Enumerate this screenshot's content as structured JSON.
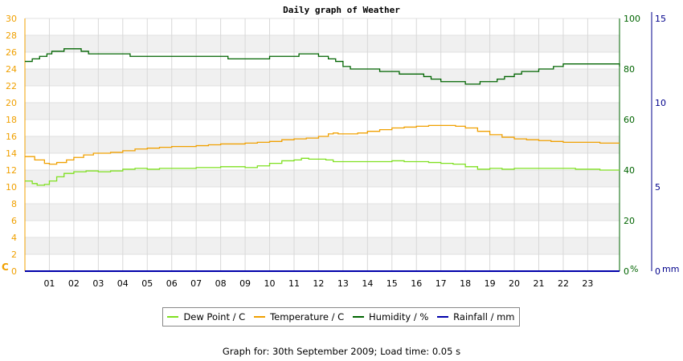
{
  "chart_data": {
    "type": "line",
    "title": "Daily graph of Weather",
    "x_tick_labels": [
      "01",
      "02",
      "03",
      "04",
      "05",
      "06",
      "07",
      "08",
      "09",
      "10",
      "11",
      "12",
      "13",
      "14",
      "15",
      "16",
      "17",
      "18",
      "19",
      "20",
      "21",
      "22",
      "23"
    ],
    "xlim": [
      0,
      24.3
    ],
    "y_axes": {
      "left": {
        "unit": "C",
        "ticks": [
          0,
          2,
          4,
          6,
          8,
          10,
          12,
          14,
          16,
          18,
          20,
          22,
          24,
          26,
          28,
          30
        ],
        "ylim": [
          0,
          30
        ],
        "color": "#f0a000"
      },
      "right1": {
        "unit": "%",
        "ticks": [
          0,
          20,
          40,
          60,
          80,
          100
        ],
        "ylim": [
          0,
          100
        ],
        "color": "#006400"
      },
      "right2": {
        "unit": "mm",
        "ticks": [
          0,
          5,
          10,
          15
        ],
        "ylim": [
          0,
          15
        ],
        "color": "#00008b"
      }
    },
    "grid": true,
    "legend_position": "bottom",
    "series": [
      {
        "name": "Dew Point / C",
        "axis": "left",
        "color": "#7fe020",
        "x": [
          0,
          0.3,
          0.5,
          0.8,
          1.0,
          1.3,
          1.6,
          2.0,
          2.5,
          3.0,
          3.5,
          4.0,
          4.5,
          5.0,
          5.5,
          6.0,
          6.5,
          7.0,
          7.5,
          8.0,
          8.5,
          9.0,
          9.5,
          10.0,
          10.5,
          11.0,
          11.3,
          11.6,
          12.0,
          12.3,
          12.6,
          13.0,
          13.5,
          14.0,
          14.5,
          15.0,
          15.5,
          16.0,
          16.5,
          17.0,
          17.5,
          18.0,
          18.5,
          19.0,
          19.5,
          20.0,
          20.5,
          21.0,
          21.5,
          22.0,
          22.5,
          23.0,
          23.5,
          24.3
        ],
        "values": [
          10.7,
          10.4,
          10.2,
          10.3,
          10.7,
          11.2,
          11.6,
          11.8,
          11.9,
          11.8,
          11.9,
          12.1,
          12.2,
          12.1,
          12.2,
          12.2,
          12.2,
          12.3,
          12.3,
          12.4,
          12.4,
          12.3,
          12.5,
          12.8,
          13.1,
          13.2,
          13.4,
          13.3,
          13.3,
          13.2,
          13.0,
          13.0,
          13.0,
          13.0,
          13.0,
          13.1,
          13.0,
          13.0,
          12.9,
          12.8,
          12.7,
          12.4,
          12.1,
          12.2,
          12.1,
          12.2,
          12.2,
          12.2,
          12.2,
          12.2,
          12.1,
          12.1,
          12.0,
          12.0
        ]
      },
      {
        "name": "Temperature / C",
        "axis": "left",
        "color": "#f0a000",
        "x": [
          0,
          0.4,
          0.8,
          1.0,
          1.3,
          1.7,
          2.0,
          2.4,
          2.8,
          3.0,
          3.5,
          4.0,
          4.5,
          5.0,
          5.5,
          6.0,
          6.5,
          7.0,
          7.5,
          8.0,
          8.5,
          9.0,
          9.5,
          10.0,
          10.5,
          11.0,
          11.5,
          12.0,
          12.4,
          12.6,
          12.8,
          13.0,
          13.3,
          13.6,
          14.0,
          14.5,
          15.0,
          15.5,
          16.0,
          16.5,
          17.0,
          17.3,
          17.6,
          18.0,
          18.5,
          19.0,
          19.5,
          20.0,
          20.5,
          21.0,
          21.5,
          22.0,
          22.5,
          23.0,
          23.5,
          24.3
        ],
        "values": [
          13.6,
          13.2,
          12.8,
          12.7,
          12.9,
          13.2,
          13.5,
          13.8,
          14.0,
          14.0,
          14.1,
          14.3,
          14.5,
          14.6,
          14.7,
          14.8,
          14.8,
          14.9,
          15.0,
          15.1,
          15.1,
          15.2,
          15.3,
          15.4,
          15.6,
          15.7,
          15.8,
          16.0,
          16.3,
          16.4,
          16.3,
          16.3,
          16.3,
          16.4,
          16.6,
          16.8,
          17.0,
          17.1,
          17.2,
          17.3,
          17.3,
          17.3,
          17.2,
          17.0,
          16.6,
          16.2,
          15.9,
          15.7,
          15.6,
          15.5,
          15.4,
          15.3,
          15.3,
          15.3,
          15.2,
          15.2
        ]
      },
      {
        "name": "Humidity / %",
        "axis": "right1",
        "color": "#006400",
        "x": [
          0,
          0.3,
          0.6,
          0.9,
          1.1,
          1.6,
          2.0,
          2.3,
          2.6,
          3.0,
          3.3,
          3.6,
          4.0,
          4.3,
          4.8,
          5.3,
          5.8,
          6.3,
          6.8,
          7.3,
          7.8,
          8.3,
          8.7,
          9.2,
          9.6,
          10.0,
          10.4,
          10.8,
          11.2,
          11.6,
          12.0,
          12.4,
          12.7,
          13.0,
          13.3,
          13.6,
          13.9,
          14.2,
          14.5,
          14.9,
          15.3,
          15.6,
          16.0,
          16.3,
          16.6,
          17.0,
          17.3,
          17.6,
          18.0,
          18.3,
          18.6,
          19.0,
          19.3,
          19.6,
          20.0,
          20.3,
          20.6,
          21.0,
          21.3,
          21.6,
          22.0,
          22.3,
          22.6,
          23.0,
          23.3,
          24.3
        ],
        "values": [
          83,
          84,
          85,
          86,
          87,
          88,
          88,
          87,
          86,
          86,
          86,
          86,
          86,
          85,
          85,
          85,
          85,
          85,
          85,
          85,
          85,
          84,
          84,
          84,
          84,
          85,
          85,
          85,
          86,
          86,
          85,
          84,
          83,
          81,
          80,
          80,
          80,
          80,
          79,
          79,
          78,
          78,
          78,
          77,
          76,
          75,
          75,
          75,
          74,
          74,
          75,
          75,
          76,
          77,
          78,
          79,
          79,
          80,
          80,
          81,
          82,
          82,
          82,
          82,
          82,
          81
        ]
      },
      {
        "name": "Rainfall / mm",
        "axis": "right2",
        "color": "#0000aa",
        "x": [
          0,
          24.3
        ],
        "values": [
          0,
          0
        ]
      }
    ],
    "footer": "Graph for: 30th September 2009; Load time: 0.05 s"
  }
}
